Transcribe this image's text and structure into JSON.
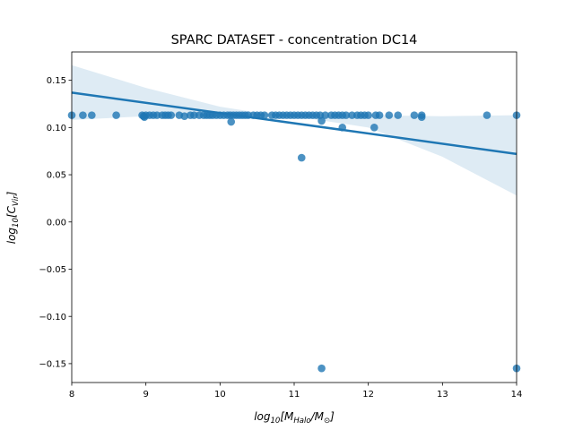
{
  "chart_data": {
    "type": "scatter",
    "title": "SPARC DATASET - concentration DC14",
    "xlabel": "log10[M_Halo/M_sun]",
    "ylabel": "log10[C_Vir]",
    "xlim": [
      8,
      14
    ],
    "ylim": [
      -0.17,
      0.18
    ],
    "xticks": [
      8,
      9,
      10,
      11,
      12,
      13,
      14
    ],
    "xtick_labels": [
      "8",
      "9",
      "10",
      "11",
      "12",
      "13",
      "14"
    ],
    "yticks": [
      -0.15,
      -0.1,
      -0.05,
      0.0,
      0.05,
      0.1,
      0.15
    ],
    "ytick_labels": [
      "−0.15",
      "−0.10",
      "−0.05",
      "0.00",
      "0.05",
      "0.10",
      "0.15"
    ],
    "grid": false,
    "colors": {
      "points": "#1f77b4",
      "line": "#1f77b4",
      "band": "#1f77b4"
    },
    "regression": {
      "x": [
        8,
        14
      ],
      "y": [
        0.137,
        0.072
      ]
    },
    "confidence_band": {
      "x": [
        8,
        9,
        10,
        10.5,
        11,
        12,
        13,
        14
      ],
      "upper": [
        0.166,
        0.142,
        0.122,
        0.116,
        0.113,
        0.113,
        0.112,
        0.113
      ],
      "lower": [
        0.108,
        0.112,
        0.113,
        0.113,
        0.112,
        0.1,
        0.069,
        0.028
      ]
    },
    "series": [
      {
        "x": [
          8.0,
          8.15,
          8.27,
          8.6,
          8.95,
          8.98,
          9.0,
          9.05,
          9.1,
          9.15,
          9.22,
          9.26,
          9.3,
          9.34,
          9.45,
          9.52,
          9.6,
          9.65,
          9.72,
          9.78,
          9.82,
          9.86,
          9.9,
          9.95,
          10.0,
          10.05,
          10.1,
          10.14,
          10.18,
          10.22,
          10.26,
          10.3,
          10.34,
          10.38,
          10.45,
          10.5,
          10.55,
          10.6,
          10.7,
          10.75,
          10.8,
          10.85,
          10.9,
          10.95,
          11.0,
          11.05,
          11.1,
          11.15,
          11.2,
          11.25,
          11.3,
          11.35,
          11.42,
          11.5,
          11.55,
          11.6,
          11.65,
          11.7,
          11.78,
          11.85,
          11.9,
          11.95,
          12.0,
          12.1,
          12.15,
          12.28,
          12.4,
          12.62,
          12.72,
          13.6,
          14.0,
          10.15,
          11.1,
          11.37,
          11.65,
          12.08,
          12.72,
          8.97,
          11.37,
          14.0
        ],
        "y": [
          0.113,
          0.113,
          0.113,
          0.113,
          0.113,
          0.111,
          0.113,
          0.113,
          0.113,
          0.113,
          0.113,
          0.113,
          0.113,
          0.113,
          0.113,
          0.112,
          0.113,
          0.113,
          0.113,
          0.113,
          0.113,
          0.113,
          0.113,
          0.113,
          0.113,
          0.113,
          0.113,
          0.113,
          0.113,
          0.113,
          0.113,
          0.113,
          0.113,
          0.113,
          0.113,
          0.113,
          0.113,
          0.113,
          0.113,
          0.113,
          0.113,
          0.113,
          0.113,
          0.113,
          0.113,
          0.113,
          0.113,
          0.113,
          0.113,
          0.113,
          0.113,
          0.113,
          0.113,
          0.113,
          0.113,
          0.113,
          0.113,
          0.113,
          0.113,
          0.113,
          0.113,
          0.113,
          0.113,
          0.113,
          0.113,
          0.113,
          0.113,
          0.113,
          0.113,
          0.113,
          0.113,
          0.106,
          0.068,
          0.107,
          0.1,
          0.1,
          0.111,
          0.112,
          -0.155,
          -0.155
        ]
      }
    ]
  }
}
